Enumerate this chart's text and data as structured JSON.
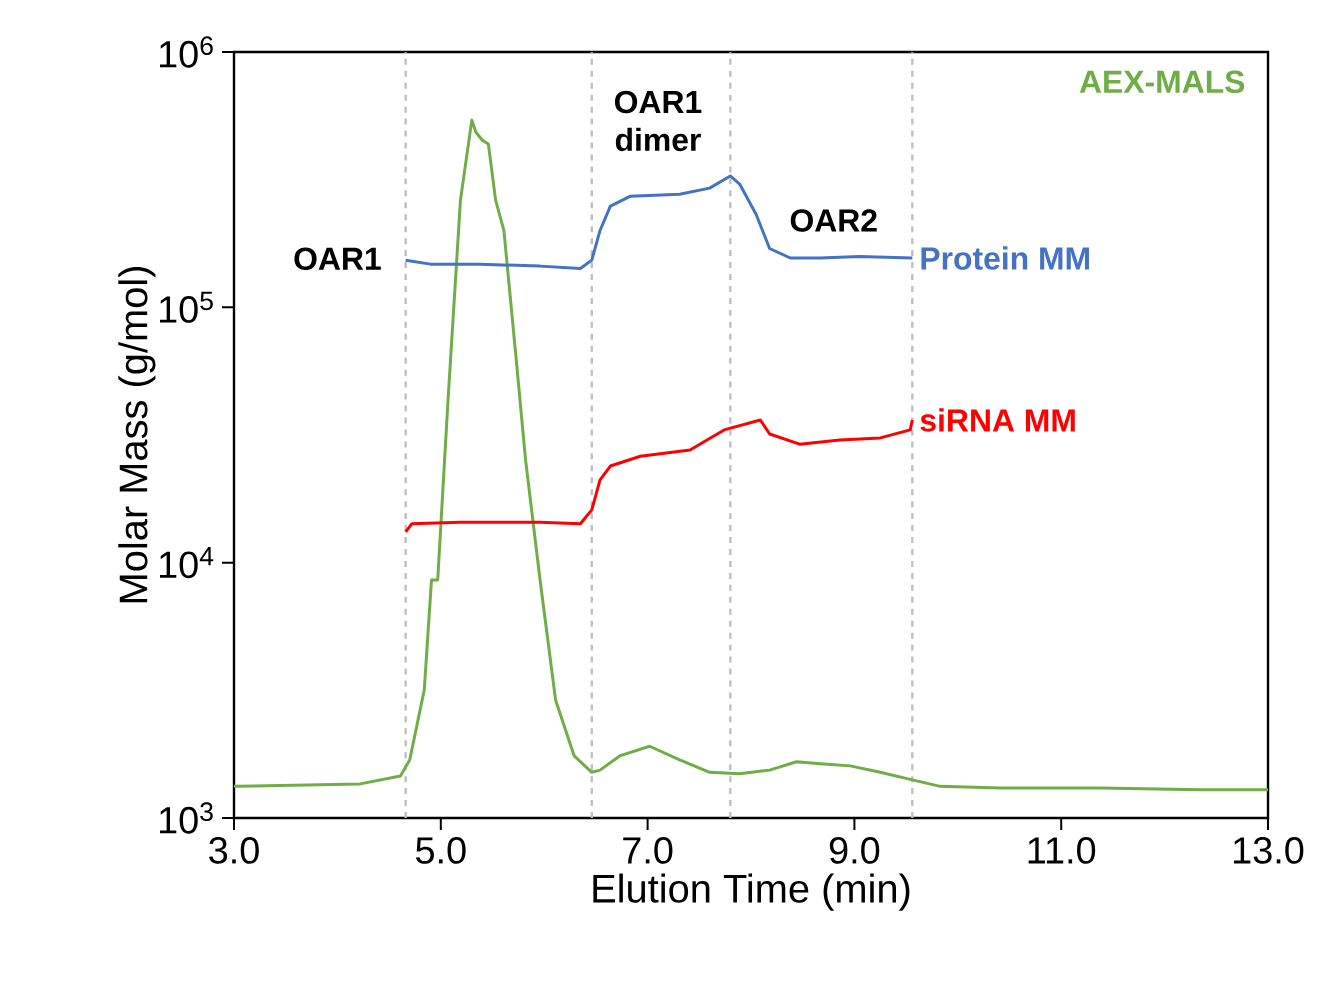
{
  "chart_data": {
    "type": "line",
    "xlabel": "Elution Time (min)",
    "ylabel": "Molar Mass (g/mol)",
    "log": "y",
    "xlim": [
      3,
      13
    ],
    "xticks": [
      {
        "value": 3,
        "label": "3.0"
      },
      {
        "value": 5,
        "label": "5.0"
      },
      {
        "value": 7,
        "label": "7.0"
      },
      {
        "value": 9,
        "label": "9.0"
      },
      {
        "value": 11,
        "label": "11.0"
      },
      {
        "value": 13,
        "label": "13.0"
      }
    ],
    "ylim": [
      1000,
      1000000
    ],
    "yticks": [
      {
        "value": 1000,
        "label": "10$^{3}$"
      },
      {
        "value": 10000,
        "label": "10$^{4}$"
      },
      {
        "value": 100000,
        "label": "10$^{5}$"
      },
      {
        "value": 1000000,
        "label": "10$^{6}$"
      }
    ],
    "grid": false,
    "series": [
      {
        "name": "AEX-MALS",
        "color": "#70ad47",
        "x": [
          3.0,
          4.22,
          4.61,
          4.7,
          4.8,
          4.84,
          4.91,
          4.97,
          5.07,
          5.19,
          5.3,
          5.34,
          5.4,
          5.46,
          5.53,
          5.61,
          5.73,
          5.82,
          5.96,
          6.11,
          6.29,
          6.46,
          6.54,
          6.73,
          7.02,
          7.31,
          7.6,
          7.89,
          8.18,
          8.44,
          8.67,
          8.96,
          9.25,
          9.56,
          9.83,
          10.41,
          11.38,
          12.34,
          13.0
        ],
        "values": [
          1330,
          1360,
          1460,
          1690,
          2650,
          3170,
          8550,
          8550,
          43400,
          263000,
          541000,
          485000,
          452000,
          436000,
          263000,
          200000,
          62100,
          25200,
          8550,
          2900,
          1750,
          1510,
          1540,
          1750,
          1910,
          1690,
          1510,
          1490,
          1540,
          1660,
          1630,
          1600,
          1510,
          1410,
          1330,
          1310,
          1310,
          1290,
          1290
        ]
      },
      {
        "name": "Protein MM",
        "color": "#4472c4",
        "x": [
          4.66,
          4.9,
          5.38,
          5.96,
          6.35,
          6.46,
          6.54,
          6.64,
          6.83,
          7.31,
          7.6,
          7.8,
          7.89,
          8.05,
          8.18,
          8.38,
          8.67,
          9.05,
          9.56
        ],
        "values": [
          153000,
          147600,
          147600,
          145000,
          142000,
          153000,
          200000,
          249000,
          272000,
          277000,
          293000,
          327000,
          304000,
          231000,
          170000,
          156000,
          156000,
          158000,
          156000
        ]
      },
      {
        "name": "siRNA MM",
        "color": "#ff0000",
        "x": [
          4.66,
          4.72,
          5.19,
          5.96,
          6.35,
          6.46,
          6.54,
          6.64,
          6.93,
          7.41,
          7.74,
          8.09,
          8.18,
          8.47,
          8.86,
          9.25,
          9.54,
          9.56
        ],
        "values": [
          13200,
          14200,
          14400,
          14400,
          14200,
          16100,
          21100,
          23900,
          26100,
          27600,
          33100,
          36200,
          31900,
          29100,
          30200,
          30800,
          33100,
          36200
        ]
      }
    ],
    "ref_lines": [
      {
        "axis": "x",
        "value": 4.66,
        "color": "#bfbfbf",
        "line_style": "dashed"
      },
      {
        "axis": "x",
        "value": 6.46,
        "color": "#bfbfbf",
        "line_style": "dashed"
      },
      {
        "axis": "x",
        "value": 7.8,
        "color": "#bfbfbf",
        "line_style": "dashed"
      },
      {
        "axis": "x",
        "value": 9.56,
        "color": "#bfbfbf",
        "line_style": "dashed"
      }
    ],
    "annotations": [
      "OAR1",
      "OAR1 dimer",
      "OAR2"
    ]
  }
}
